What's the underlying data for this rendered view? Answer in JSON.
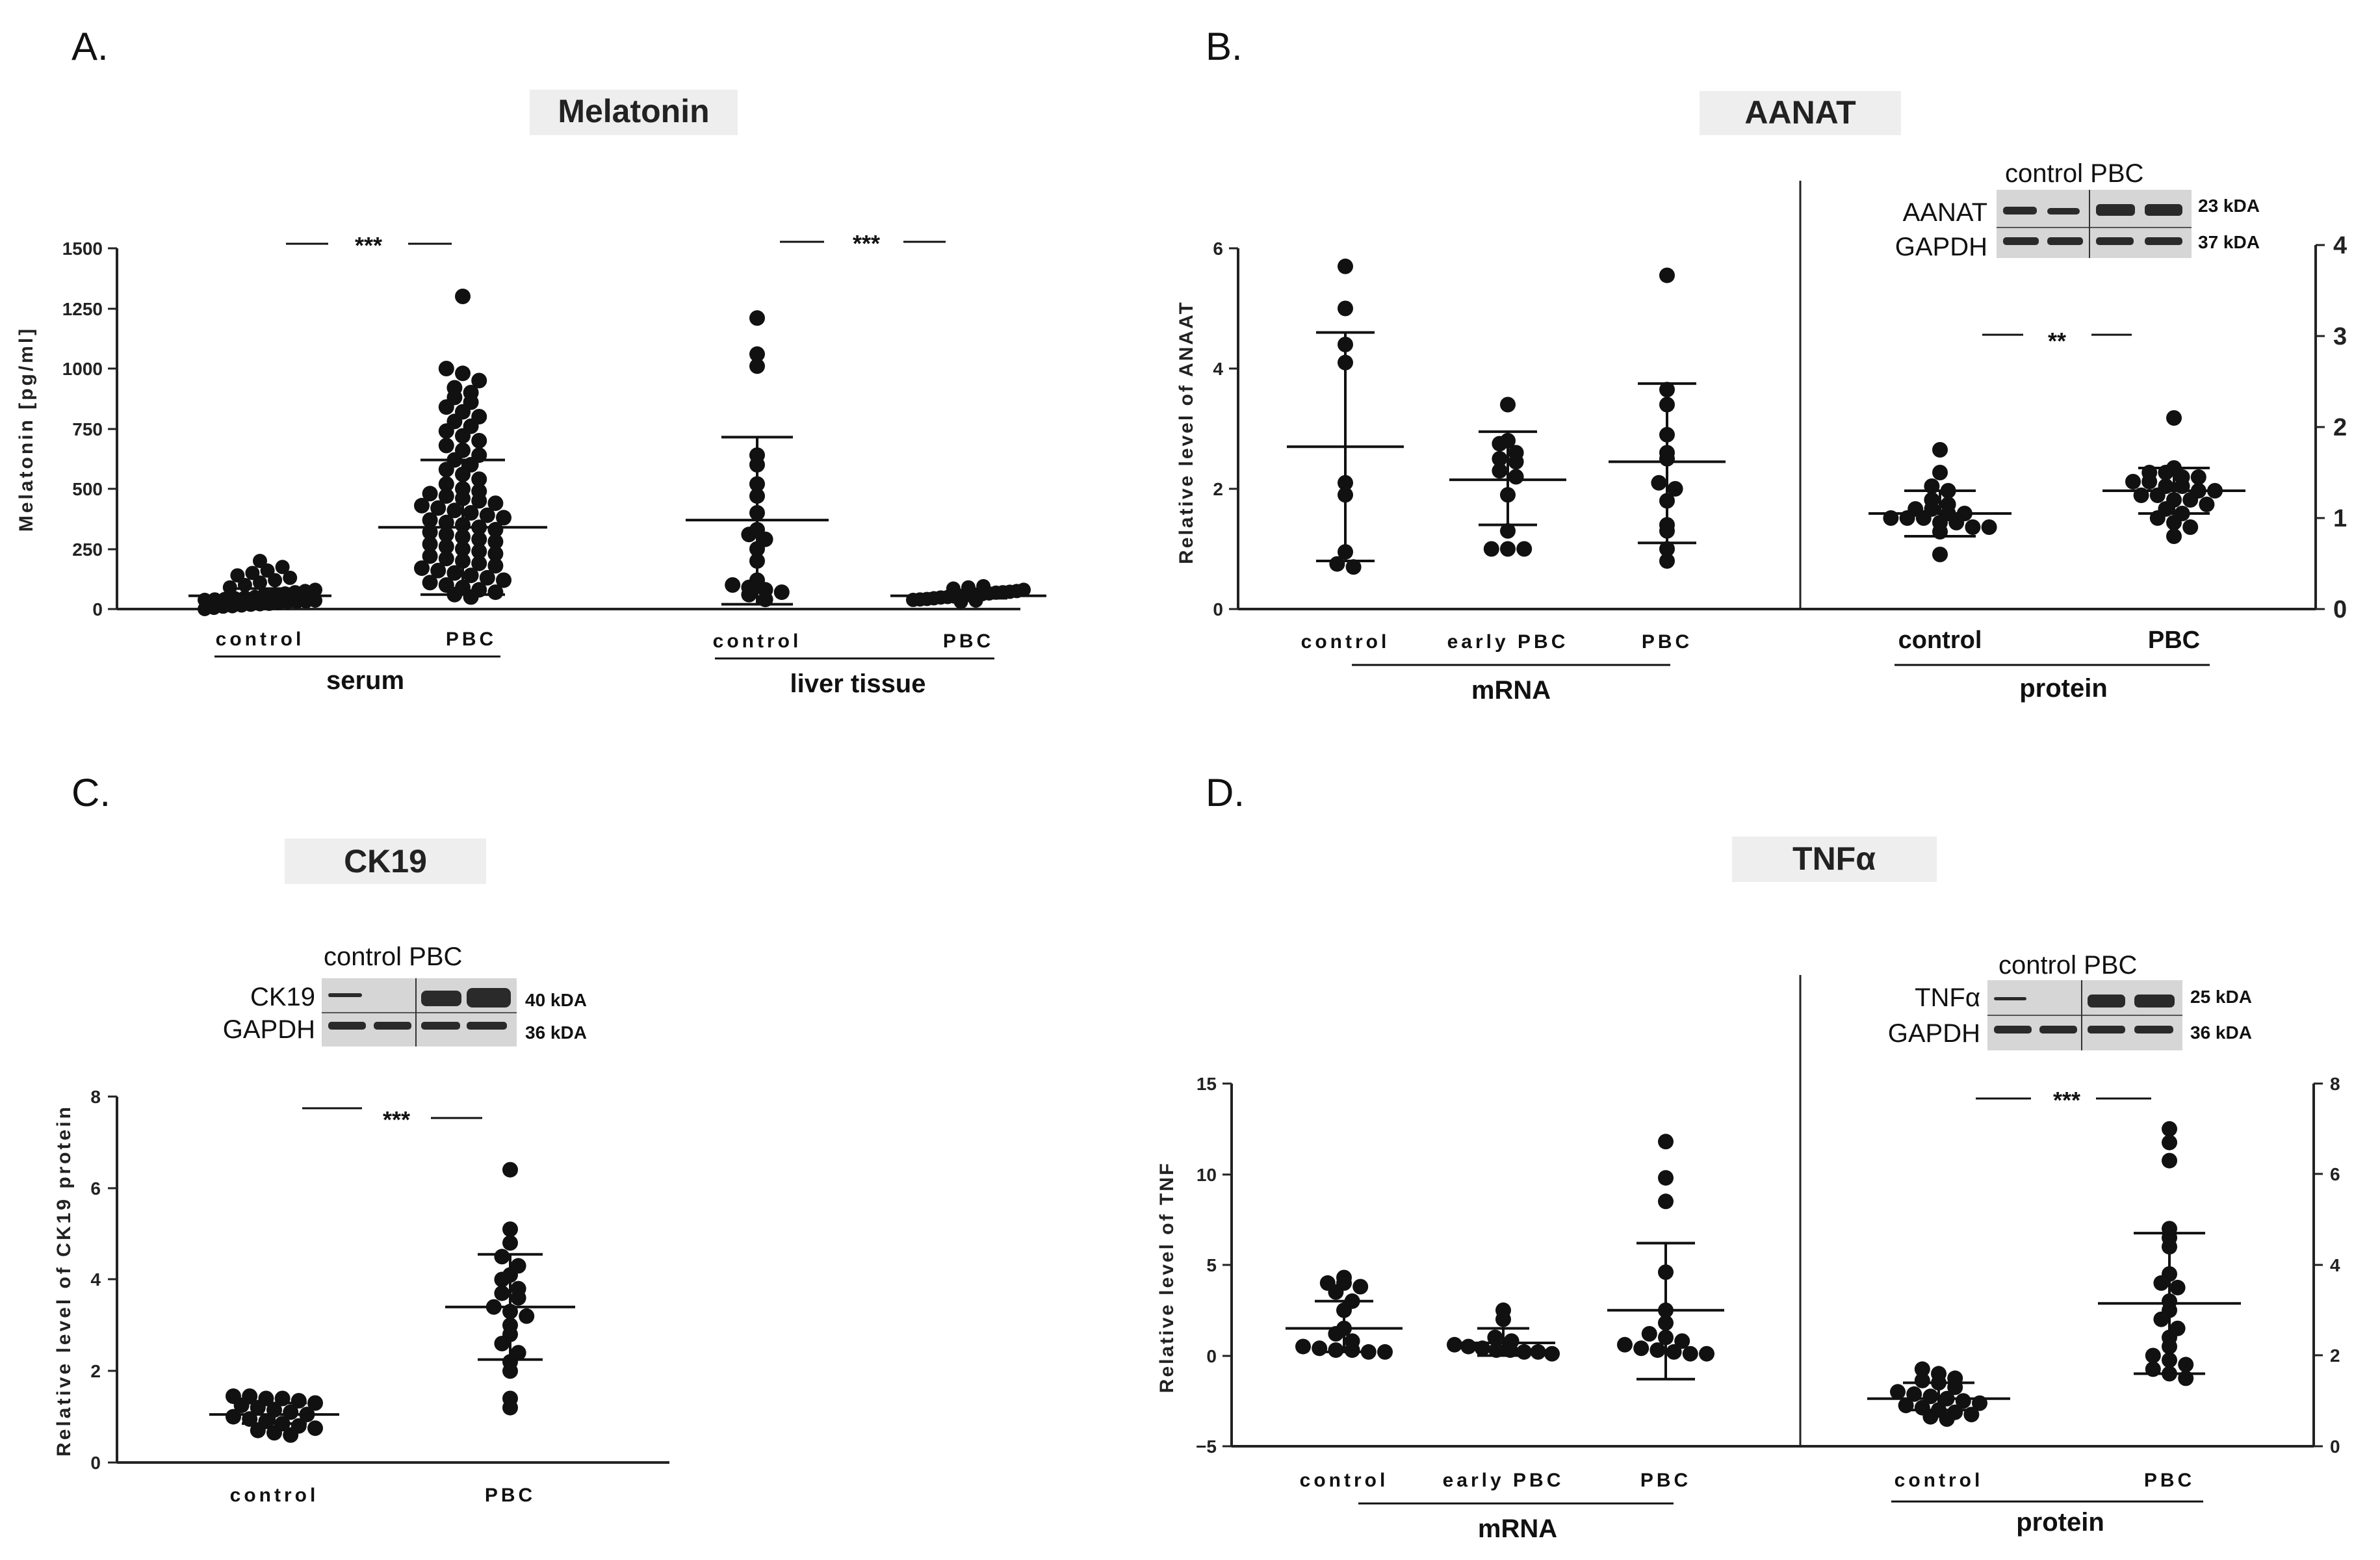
{
  "panels": {
    "A": {
      "letter": "A.",
      "title": "Melatonin",
      "ylabel": "Melatonin [pg/ml]",
      "yticks": [
        "0",
        "250",
        "500",
        "750",
        "1000",
        "1250",
        "1500"
      ],
      "cats": [
        "control",
        "PBC",
        "control",
        "PBC"
      ],
      "groups": [
        "serum",
        "liver tissue"
      ],
      "sig": [
        "***",
        "***"
      ]
    },
    "B": {
      "letter": "B.",
      "title": "AANAT",
      "ylabel": "Relative level of ANAAT",
      "yticks_left": [
        "0",
        "2",
        "4",
        "6"
      ],
      "yticks_right": [
        "0",
        "1",
        "2",
        "3",
        "4"
      ],
      "cats_mrna": [
        "control",
        "early PBC",
        "PBC"
      ],
      "cats_protein": [
        "control",
        "PBC"
      ],
      "groups": [
        "mRNA",
        "protein"
      ],
      "sig": "**",
      "blot": {
        "header": "control PBC",
        "rows": [
          "AANAT",
          "GAPDH"
        ],
        "kda": [
          "23 kDA",
          "37 kDA"
        ]
      }
    },
    "C": {
      "letter": "C.",
      "title": "CK19",
      "ylabel": "Relative level of CK19 protein",
      "yticks": [
        "0",
        "2",
        "4",
        "6",
        "8"
      ],
      "cats": [
        "control",
        "PBC"
      ],
      "sig": "***",
      "blot": {
        "header": "control PBC",
        "rows": [
          "CK19",
          "GAPDH"
        ],
        "kda": [
          "40 kDA",
          "36 kDA"
        ]
      }
    },
    "D": {
      "letter": "D.",
      "title": "TNFα",
      "ylabel": "Relative level of TNF",
      "yticks_left": [
        "−5",
        "0",
        "5",
        "10",
        "15"
      ],
      "yticks_right": [
        "0",
        "2",
        "4",
        "6",
        "8"
      ],
      "cats_mrna": [
        "control",
        "early PBC",
        "PBC"
      ],
      "cats_protein": [
        "control",
        "PBC"
      ],
      "groups": [
        "mRNA",
        "protein"
      ],
      "sig": "***",
      "blot": {
        "header": "control PBC",
        "rows": [
          "TNFα",
          "GAPDH"
        ],
        "kda": [
          "25 kDA",
          "36 kDA"
        ]
      }
    }
  },
  "chart_data": [
    {
      "panel": "A",
      "type": "scatter",
      "title": "Melatonin",
      "ylabel": "Melatonin [pg/ml]",
      "ylim": [
        0,
        1500
      ],
      "series": [
        {
          "name": "serum control",
          "mean": 55,
          "sd_low": 30,
          "sd_high": 85,
          "values": [
            0,
            5,
            10,
            12,
            15,
            18,
            20,
            22,
            25,
            28,
            30,
            32,
            35,
            38,
            40,
            42,
            45,
            48,
            50,
            55,
            60,
            65,
            70,
            75,
            80,
            90,
            100,
            110,
            120,
            130,
            140,
            150,
            160,
            175,
            200
          ]
        },
        {
          "name": "serum PBC",
          "mean": 340,
          "sd_low": 60,
          "sd_high": 620,
          "values": [
            1300,
            1000,
            980,
            950,
            920,
            900,
            880,
            860,
            840,
            820,
            800,
            780,
            760,
            740,
            720,
            700,
            680,
            660,
            640,
            620,
            600,
            580,
            560,
            540,
            520,
            500,
            490,
            480,
            470,
            460,
            450,
            440,
            430,
            420,
            410,
            400,
            390,
            380,
            370,
            360,
            350,
            340,
            330,
            320,
            310,
            300,
            290,
            280,
            270,
            260,
            250,
            240,
            230,
            220,
            210,
            200,
            190,
            180,
            170,
            160,
            150,
            140,
            130,
            120,
            110,
            100,
            90,
            80,
            70,
            60,
            50
          ]
        },
        {
          "name": "liver tissue control",
          "mean": 370,
          "sd_low": 20,
          "sd_high": 715,
          "values": [
            1210,
            1060,
            1010,
            640,
            600,
            520,
            470,
            400,
            330,
            310,
            290,
            250,
            200,
            120,
            100,
            90,
            80,
            70,
            60,
            40
          ]
        },
        {
          "name": "liver tissue PBC",
          "mean": 55,
          "sd_low": 45,
          "sd_high": 65,
          "values": [
            30,
            35,
            38,
            40,
            42,
            45,
            48,
            50,
            52,
            55,
            58,
            60,
            62,
            65,
            68,
            70,
            72,
            75,
            80,
            85,
            90,
            95
          ]
        }
      ]
    },
    {
      "panel": "B",
      "type": "scatter",
      "title": "AANAT",
      "ylabel": "Relative level of ANAAT",
      "ylim_left": [
        0,
        6
      ],
      "ylim_right": [
        0,
        4
      ],
      "series": [
        {
          "name": "mRNA control",
          "axis": "left",
          "mean": 2.7,
          "sd_low": 0.8,
          "sd_high": 4.6,
          "values": [
            5.7,
            5.0,
            4.4,
            4.1,
            2.1,
            1.9,
            0.95,
            0.75,
            0.7
          ]
        },
        {
          "name": "mRNA early PBC",
          "axis": "left",
          "mean": 2.15,
          "sd_low": 1.4,
          "sd_high": 2.95,
          "values": [
            3.4,
            2.8,
            2.75,
            2.6,
            2.5,
            2.45,
            2.3,
            2.2,
            1.9,
            1.3,
            1.0,
            1.0,
            1.0
          ]
        },
        {
          "name": "mRNA PBC",
          "axis": "left",
          "mean": 2.45,
          "sd_low": 1.1,
          "sd_high": 3.75,
          "values": [
            5.55,
            3.65,
            3.4,
            2.9,
            2.6,
            2.5,
            2.1,
            2.0,
            1.8,
            1.4,
            1.3,
            1.0,
            0.8
          ]
        },
        {
          "name": "protein control",
          "axis": "right",
          "mean": 1.05,
          "sd_low": 0.8,
          "sd_high": 1.3,
          "values": [
            1.75,
            1.5,
            1.35,
            1.3,
            1.2,
            1.15,
            1.1,
            1.1,
            1.05,
            1.05,
            1.0,
            1.0,
            1.0,
            0.95,
            0.95,
            0.9,
            0.9,
            0.85,
            0.6
          ]
        },
        {
          "name": "protein PBC",
          "axis": "right",
          "mean": 1.3,
          "sd_low": 1.05,
          "sd_high": 1.55,
          "values": [
            2.1,
            1.55,
            1.5,
            1.5,
            1.45,
            1.45,
            1.4,
            1.4,
            1.35,
            1.35,
            1.3,
            1.3,
            1.25,
            1.25,
            1.2,
            1.2,
            1.15,
            1.1,
            1.05,
            1.0,
            0.95,
            0.9,
            0.8
          ]
        }
      ]
    },
    {
      "panel": "C",
      "type": "scatter",
      "title": "CK19",
      "ylabel": "Relative level of CK19 protein",
      "ylim": [
        0,
        8
      ],
      "series": [
        {
          "name": "control",
          "mean": 1.05,
          "sd_low": 0.85,
          "sd_high": 1.3,
          "values": [
            1.45,
            1.45,
            1.4,
            1.4,
            1.35,
            1.3,
            1.25,
            1.2,
            1.15,
            1.1,
            1.05,
            1.0,
            0.95,
            0.9,
            0.85,
            0.8,
            0.75,
            0.7,
            0.65,
            0.6
          ]
        },
        {
          "name": "PBC",
          "mean": 3.4,
          "sd_low": 2.25,
          "sd_high": 4.55,
          "values": [
            6.4,
            5.1,
            4.8,
            4.5,
            4.3,
            4.1,
            4.0,
            3.8,
            3.7,
            3.6,
            3.4,
            3.3,
            3.2,
            3.0,
            2.8,
            2.6,
            2.4,
            2.2,
            2.0,
            1.4,
            1.2
          ]
        }
      ]
    },
    {
      "panel": "D",
      "type": "scatter",
      "title": "TNFα",
      "ylabel": "Relative level of TNF",
      "ylim_left": [
        -5,
        15
      ],
      "ylim_right": [
        0,
        8
      ],
      "series": [
        {
          "name": "mRNA control",
          "axis": "left",
          "mean": 1.5,
          "sd_low": 0.2,
          "sd_high": 3.0,
          "values": [
            4.3,
            4.0,
            4.0,
            3.8,
            3.5,
            3.0,
            2.5,
            1.5,
            1.2,
            0.8,
            0.5,
            0.4,
            0.3,
            0.3,
            0.2,
            0.2
          ]
        },
        {
          "name": "mRNA early PBC",
          "axis": "left",
          "mean": 0.7,
          "sd_low": 0.0,
          "sd_high": 1.5,
          "values": [
            2.5,
            2.0,
            1.0,
            0.8,
            0.6,
            0.5,
            0.4,
            0.3,
            0.3,
            0.2,
            0.2,
            0.1
          ]
        },
        {
          "name": "mRNA PBC",
          "axis": "left",
          "mean": 2.5,
          "sd_low": -1.3,
          "sd_high": 6.2,
          "values": [
            11.8,
            9.8,
            8.5,
            4.6,
            2.5,
            1.8,
            1.2,
            1.0,
            0.8,
            0.6,
            0.4,
            0.3,
            0.2,
            0.1,
            0.1
          ]
        },
        {
          "name": "protein control",
          "axis": "right",
          "mean": 1.05,
          "sd_low": 0.8,
          "sd_high": 1.4,
          "values": [
            1.7,
            1.6,
            1.5,
            1.45,
            1.4,
            1.3,
            1.2,
            1.15,
            1.1,
            1.05,
            1.0,
            0.95,
            0.9,
            0.85,
            0.8,
            0.75,
            0.7,
            0.65,
            0.6
          ]
        },
        {
          "name": "protein PBC",
          "axis": "right",
          "mean": 3.15,
          "sd_low": 1.6,
          "sd_high": 4.7,
          "values": [
            7.0,
            6.7,
            6.3,
            4.8,
            4.6,
            4.4,
            3.8,
            3.6,
            3.5,
            3.2,
            3.0,
            2.8,
            2.6,
            2.4,
            2.2,
            2.0,
            1.9,
            1.8,
            1.7,
            1.6,
            1.5
          ]
        }
      ]
    }
  ]
}
